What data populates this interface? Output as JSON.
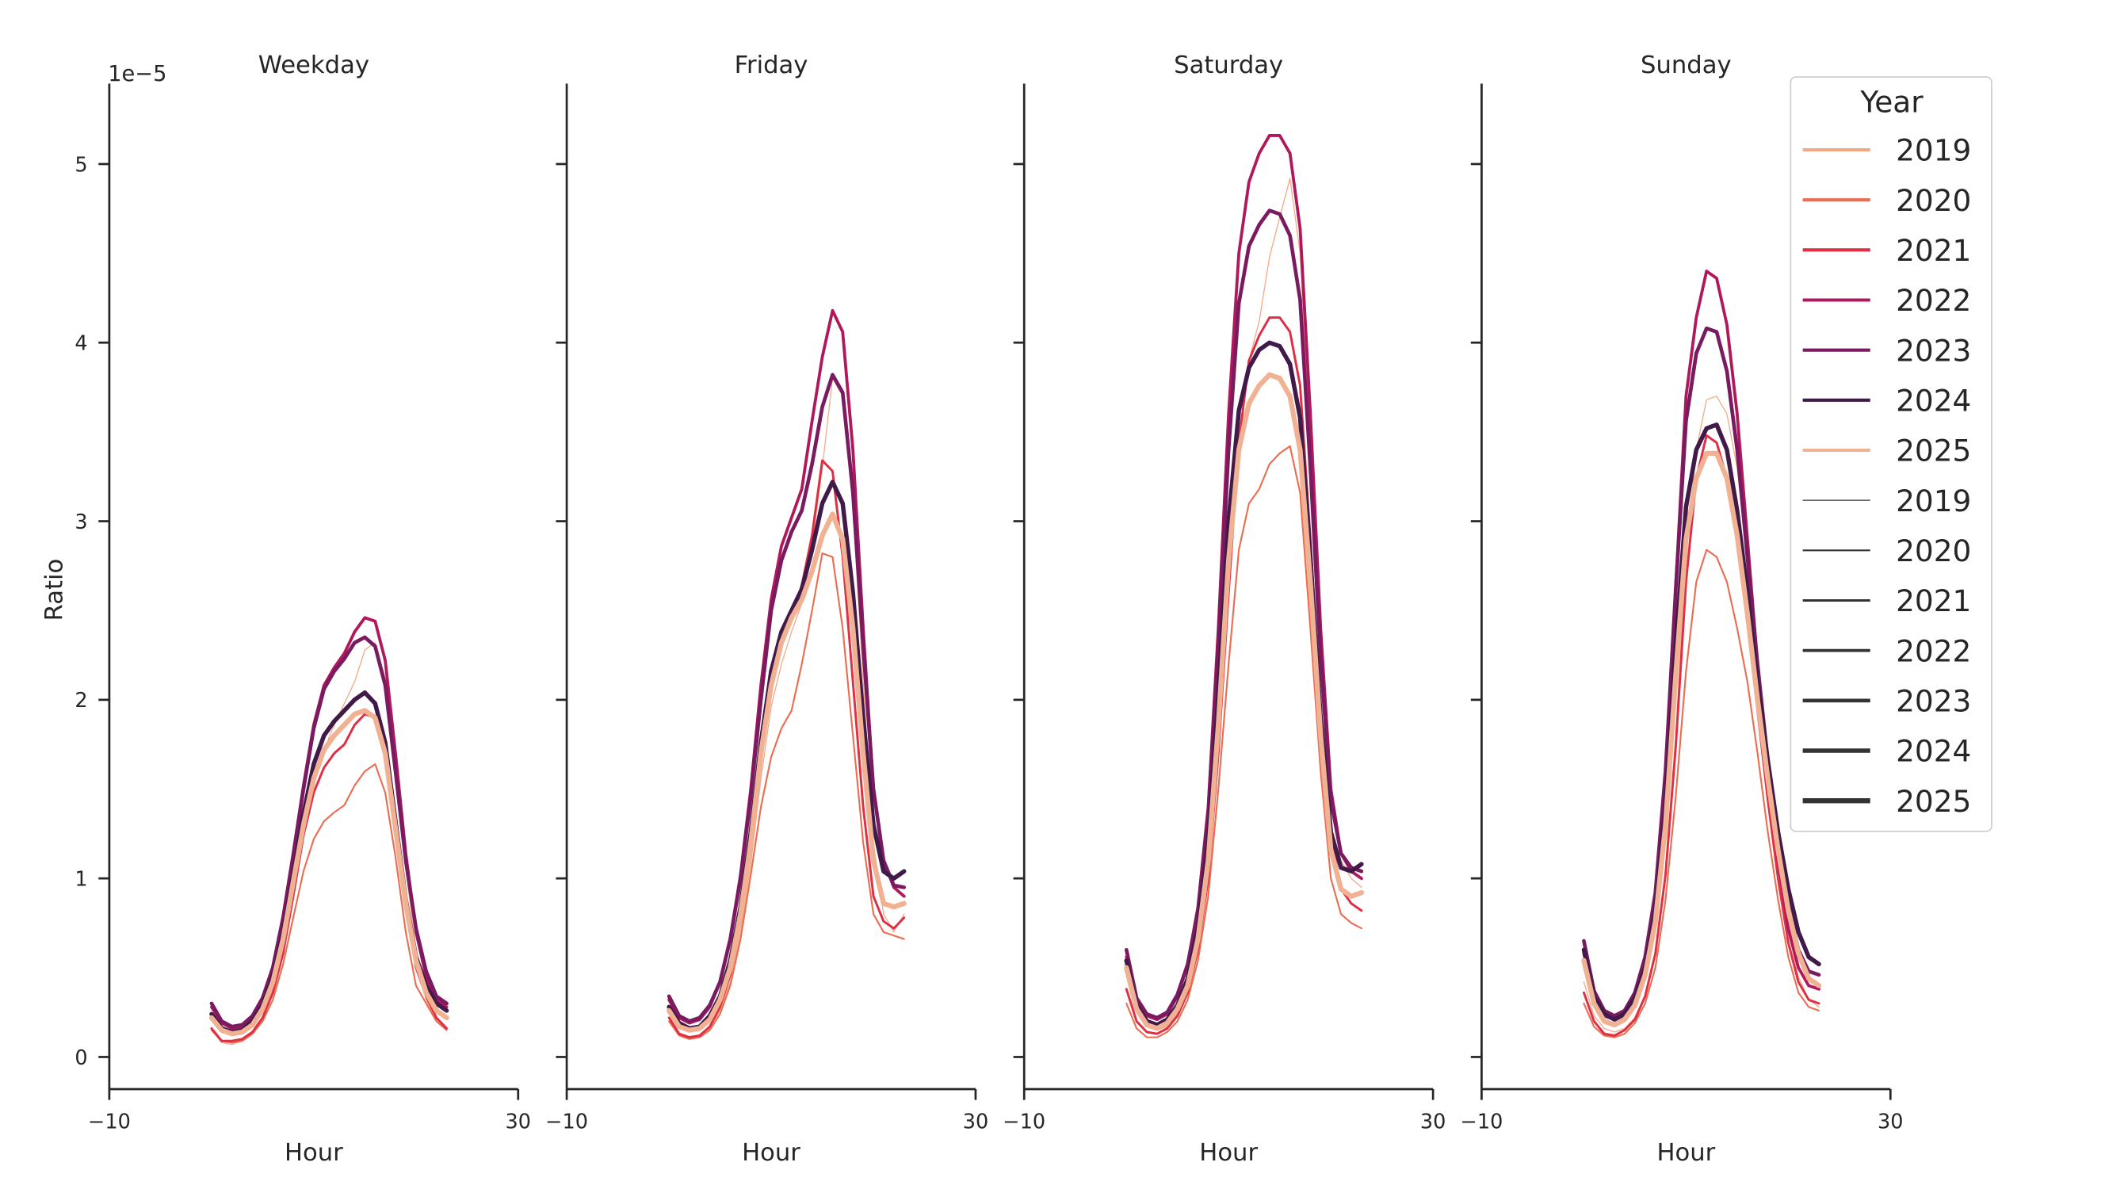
{
  "figure": {
    "ylabel": "Ratio",
    "offset_label": "1e−5",
    "legend": {
      "title": "Year",
      "hue_entries": [
        {
          "label": "2019",
          "color": "#f3a883"
        },
        {
          "label": "2020",
          "color": "#ec6c51"
        },
        {
          "label": "2021",
          "color": "#de2f45"
        },
        {
          "label": "2022",
          "color": "#b0185c"
        },
        {
          "label": "2023",
          "color": "#7a1a60"
        },
        {
          "label": "2024",
          "color": "#401a48"
        },
        {
          "label": "2025",
          "color": "#f1b294"
        }
      ],
      "size_entries": [
        {
          "label": "2019",
          "width": 1.2
        },
        {
          "label": "2020",
          "width": 2.0
        },
        {
          "label": "2021",
          "width": 2.8
        },
        {
          "label": "2022",
          "width": 3.6
        },
        {
          "label": "2023",
          "width": 4.4
        },
        {
          "label": "2024",
          "width": 5.2
        },
        {
          "label": "2025",
          "width": 6.0
        }
      ]
    }
  },
  "chart_data": [
    {
      "type": "line",
      "title": "Weekday",
      "xlabel": "Hour",
      "ylabel": "Ratio",
      "xlim": [
        -10,
        30
      ],
      "ylim": [
        -0.18,
        5.45
      ],
      "xticks": [
        -10,
        30
      ],
      "yticks": [
        0,
        1,
        2,
        3,
        4,
        5
      ],
      "x": [
        0,
        1,
        2,
        3,
        4,
        5,
        6,
        7,
        8,
        9,
        10,
        11,
        12,
        13,
        14,
        15,
        16,
        17,
        18,
        19,
        20,
        21,
        22,
        23
      ],
      "series": [
        {
          "name": "2019",
          "color": "#f3a883",
          "width": 1.2,
          "values": [
            0.15,
            0.08,
            0.07,
            0.09,
            0.14,
            0.22,
            0.36,
            0.58,
            0.88,
            1.22,
            1.52,
            1.72,
            1.86,
            1.98,
            2.1,
            2.28,
            2.32,
            2.12,
            1.6,
            1.05,
            0.6,
            0.32,
            0.2,
            0.15
          ]
        },
        {
          "name": "2020",
          "color": "#ec6c51",
          "width": 2.0,
          "values": [
            0.15,
            0.09,
            0.08,
            0.09,
            0.13,
            0.2,
            0.32,
            0.52,
            0.78,
            1.04,
            1.22,
            1.32,
            1.37,
            1.41,
            1.52,
            1.6,
            1.64,
            1.48,
            1.12,
            0.7,
            0.4,
            0.3,
            0.2,
            0.15
          ]
        },
        {
          "name": "2021",
          "color": "#de2f45",
          "width": 2.8,
          "values": [
            0.16,
            0.09,
            0.09,
            0.1,
            0.14,
            0.22,
            0.36,
            0.58,
            0.9,
            1.24,
            1.48,
            1.62,
            1.7,
            1.75,
            1.86,
            1.92,
            1.9,
            1.72,
            1.3,
            0.85,
            0.5,
            0.34,
            0.22,
            0.16
          ]
        },
        {
          "name": "2022",
          "color": "#b0185c",
          "width": 3.6,
          "values": [
            0.28,
            0.19,
            0.16,
            0.17,
            0.22,
            0.32,
            0.5,
            0.78,
            1.14,
            1.52,
            1.86,
            2.08,
            2.18,
            2.26,
            2.38,
            2.46,
            2.44,
            2.22,
            1.7,
            1.14,
            0.7,
            0.45,
            0.32,
            0.28
          ]
        },
        {
          "name": "2023",
          "color": "#7a1a60",
          "width": 4.4,
          "values": [
            0.3,
            0.2,
            0.17,
            0.18,
            0.23,
            0.33,
            0.5,
            0.78,
            1.13,
            1.5,
            1.84,
            2.06,
            2.16,
            2.23,
            2.32,
            2.35,
            2.3,
            2.08,
            1.6,
            1.1,
            0.72,
            0.48,
            0.34,
            0.3
          ]
        },
        {
          "name": "2024",
          "color": "#401a48",
          "width": 5.2,
          "values": [
            0.24,
            0.16,
            0.14,
            0.15,
            0.2,
            0.29,
            0.45,
            0.7,
            1.02,
            1.36,
            1.64,
            1.8,
            1.88,
            1.94,
            2.0,
            2.04,
            1.98,
            1.76,
            1.32,
            0.88,
            0.56,
            0.4,
            0.3,
            0.26
          ]
        },
        {
          "name": "2025",
          "color": "#f1b294",
          "width": 6.0,
          "values": [
            0.22,
            0.15,
            0.13,
            0.14,
            0.18,
            0.27,
            0.42,
            0.66,
            0.98,
            1.3,
            1.56,
            1.72,
            1.8,
            1.86,
            1.92,
            1.94,
            1.9,
            1.7,
            1.28,
            0.86,
            0.54,
            0.36,
            0.26,
            0.22
          ]
        }
      ]
    },
    {
      "type": "line",
      "title": "Friday",
      "xlabel": "Hour",
      "ylabel": "",
      "xlim": [
        -10,
        30
      ],
      "ylim": [
        -0.18,
        5.45
      ],
      "xticks": [
        -10,
        30
      ],
      "yticks": [
        0,
        1,
        2,
        3,
        4,
        5
      ],
      "x": [
        0,
        1,
        2,
        3,
        4,
        5,
        6,
        7,
        8,
        9,
        10,
        11,
        12,
        13,
        14,
        15,
        16,
        17,
        18,
        19,
        20,
        21,
        22,
        23
      ],
      "series": [
        {
          "name": "2019",
          "color": "#f3a883",
          "width": 1.2,
          "values": [
            0.2,
            0.12,
            0.1,
            0.11,
            0.16,
            0.26,
            0.42,
            0.7,
            1.08,
            1.56,
            1.96,
            2.2,
            2.38,
            2.54,
            2.86,
            3.3,
            3.8,
            3.7,
            3.08,
            2.1,
            1.2,
            0.8,
            0.7,
            0.8
          ]
        },
        {
          "name": "2020",
          "color": "#ec6c51",
          "width": 2.0,
          "values": [
            0.2,
            0.12,
            0.1,
            0.11,
            0.15,
            0.24,
            0.4,
            0.66,
            1.02,
            1.4,
            1.68,
            1.84,
            1.94,
            2.2,
            2.5,
            2.82,
            2.8,
            2.4,
            1.8,
            1.2,
            0.8,
            0.7,
            0.68,
            0.66
          ]
        },
        {
          "name": "2021",
          "color": "#de2f45",
          "width": 2.8,
          "values": [
            0.22,
            0.13,
            0.11,
            0.12,
            0.17,
            0.28,
            0.46,
            0.76,
            1.2,
            1.7,
            2.08,
            2.32,
            2.46,
            2.64,
            2.92,
            3.34,
            3.28,
            2.8,
            2.1,
            1.4,
            0.9,
            0.76,
            0.72,
            0.78
          ]
        },
        {
          "name": "2022",
          "color": "#b0185c",
          "width": 3.6,
          "values": [
            0.32,
            0.22,
            0.19,
            0.21,
            0.28,
            0.42,
            0.66,
            1.02,
            1.5,
            2.08,
            2.56,
            2.86,
            3.02,
            3.18,
            3.56,
            3.92,
            4.18,
            4.06,
            3.4,
            2.4,
            1.5,
            1.1,
            0.95,
            0.9
          ]
        },
        {
          "name": "2023",
          "color": "#7a1a60",
          "width": 4.4,
          "values": [
            0.34,
            0.23,
            0.2,
            0.22,
            0.29,
            0.42,
            0.66,
            1.0,
            1.46,
            2.0,
            2.5,
            2.78,
            2.94,
            3.06,
            3.32,
            3.64,
            3.82,
            3.72,
            3.16,
            2.3,
            1.5,
            1.1,
            0.96,
            0.95
          ]
        },
        {
          "name": "2024",
          "color": "#401a48",
          "width": 5.2,
          "values": [
            0.28,
            0.19,
            0.16,
            0.17,
            0.23,
            0.34,
            0.54,
            0.84,
            1.26,
            1.76,
            2.16,
            2.38,
            2.5,
            2.62,
            2.84,
            3.1,
            3.22,
            3.1,
            2.6,
            1.9,
            1.3,
            1.04,
            1.0,
            1.04
          ]
        },
        {
          "name": "2025",
          "color": "#f1b294",
          "width": 6.0,
          "values": [
            0.26,
            0.17,
            0.15,
            0.16,
            0.21,
            0.32,
            0.5,
            0.8,
            1.2,
            1.7,
            2.08,
            2.32,
            2.46,
            2.56,
            2.72,
            2.92,
            3.04,
            2.9,
            2.4,
            1.7,
            1.1,
            0.86,
            0.84,
            0.86
          ]
        }
      ]
    },
    {
      "type": "line",
      "title": "Saturday",
      "xlabel": "Hour",
      "ylabel": "",
      "xlim": [
        -10,
        30
      ],
      "ylim": [
        -0.18,
        5.45
      ],
      "xticks": [
        -10,
        30
      ],
      "yticks": [
        0,
        1,
        2,
        3,
        4,
        5
      ],
      "x": [
        0,
        1,
        2,
        3,
        4,
        5,
        6,
        7,
        8,
        9,
        10,
        11,
        12,
        13,
        14,
        15,
        16,
        17,
        18,
        19,
        20,
        21,
        22,
        23
      ],
      "series": [
        {
          "name": "2019",
          "color": "#f3a883",
          "width": 1.2,
          "values": [
            0.45,
            0.25,
            0.17,
            0.15,
            0.17,
            0.24,
            0.36,
            0.58,
            0.98,
            1.7,
            2.6,
            3.4,
            3.9,
            4.12,
            4.48,
            4.7,
            4.92,
            4.5,
            3.4,
            2.2,
            1.4,
            1.1,
            1.0,
            0.95
          ]
        },
        {
          "name": "2020",
          "color": "#ec6c51",
          "width": 2.0,
          "values": [
            0.3,
            0.16,
            0.11,
            0.11,
            0.14,
            0.2,
            0.32,
            0.54,
            0.9,
            1.5,
            2.2,
            2.84,
            3.1,
            3.18,
            3.32,
            3.38,
            3.42,
            3.16,
            2.4,
            1.6,
            1.0,
            0.8,
            0.75,
            0.72
          ]
        },
        {
          "name": "2021",
          "color": "#de2f45",
          "width": 2.8,
          "values": [
            0.38,
            0.2,
            0.14,
            0.13,
            0.16,
            0.23,
            0.36,
            0.6,
            1.0,
            1.7,
            2.6,
            3.44,
            3.9,
            4.04,
            4.14,
            4.14,
            4.06,
            3.76,
            2.9,
            1.94,
            1.24,
            0.94,
            0.86,
            0.82
          ]
        },
        {
          "name": "2022",
          "color": "#b0185c",
          "width": 3.6,
          "values": [
            0.56,
            0.32,
            0.23,
            0.21,
            0.24,
            0.34,
            0.52,
            0.84,
            1.4,
            2.4,
            3.6,
            4.5,
            4.9,
            5.06,
            5.16,
            5.16,
            5.06,
            4.64,
            3.6,
            2.4,
            1.5,
            1.14,
            1.04,
            1.0
          ]
        },
        {
          "name": "2023",
          "color": "#7a1a60",
          "width": 4.4,
          "values": [
            0.6,
            0.33,
            0.24,
            0.22,
            0.25,
            0.35,
            0.52,
            0.82,
            1.36,
            2.3,
            3.4,
            4.22,
            4.54,
            4.66,
            4.74,
            4.72,
            4.6,
            4.24,
            3.3,
            2.24,
            1.44,
            1.14,
            1.06,
            1.04
          ]
        },
        {
          "name": "2024",
          "color": "#401a48",
          "width": 5.2,
          "values": [
            0.54,
            0.29,
            0.2,
            0.18,
            0.21,
            0.29,
            0.44,
            0.72,
            1.2,
            2.02,
            3.0,
            3.62,
            3.86,
            3.96,
            4.0,
            3.98,
            3.88,
            3.58,
            2.8,
            1.9,
            1.26,
            1.06,
            1.04,
            1.08
          ]
        },
        {
          "name": "2025",
          "color": "#f1b294",
          "width": 6.0,
          "values": [
            0.5,
            0.27,
            0.18,
            0.16,
            0.19,
            0.27,
            0.4,
            0.66,
            1.1,
            1.86,
            2.78,
            3.4,
            3.66,
            3.76,
            3.82,
            3.8,
            3.7,
            3.4,
            2.66,
            1.8,
            1.16,
            0.94,
            0.9,
            0.92
          ]
        }
      ]
    },
    {
      "type": "line",
      "title": "Sunday",
      "xlabel": "Hour",
      "ylabel": "",
      "xlim": [
        -10,
        30
      ],
      "ylim": [
        -0.18,
        5.45
      ],
      "xticks": [
        -10,
        30
      ],
      "yticks": [
        0,
        1,
        2,
        3,
        4,
        5
      ],
      "x": [
        0,
        1,
        2,
        3,
        4,
        5,
        6,
        7,
        8,
        9,
        10,
        11,
        12,
        13,
        14,
        15,
        16,
        17,
        18,
        19,
        20,
        21,
        22,
        23
      ],
      "series": [
        {
          "name": "2019",
          "color": "#f3a883",
          "width": 1.2,
          "values": [
            0.42,
            0.23,
            0.16,
            0.14,
            0.16,
            0.22,
            0.34,
            0.58,
            1.04,
            1.8,
            2.8,
            3.4,
            3.68,
            3.7,
            3.6,
            3.3,
            2.8,
            2.2,
            1.6,
            1.1,
            0.7,
            0.45,
            0.32,
            0.28
          ]
        },
        {
          "name": "2020",
          "color": "#ec6c51",
          "width": 2.0,
          "values": [
            0.3,
            0.17,
            0.12,
            0.11,
            0.13,
            0.19,
            0.3,
            0.5,
            0.88,
            1.46,
            2.16,
            2.66,
            2.84,
            2.8,
            2.66,
            2.4,
            2.1,
            1.7,
            1.26,
            0.88,
            0.56,
            0.36,
            0.28,
            0.26
          ]
        },
        {
          "name": "2021",
          "color": "#de2f45",
          "width": 2.8,
          "values": [
            0.36,
            0.2,
            0.13,
            0.12,
            0.15,
            0.21,
            0.34,
            0.58,
            1.02,
            1.74,
            2.66,
            3.24,
            3.48,
            3.44,
            3.24,
            2.9,
            2.44,
            1.94,
            1.44,
            1.0,
            0.64,
            0.42,
            0.32,
            0.3
          ]
        },
        {
          "name": "2022",
          "color": "#b0185c",
          "width": 3.6,
          "values": [
            0.58,
            0.33,
            0.23,
            0.21,
            0.24,
            0.33,
            0.52,
            0.88,
            1.56,
            2.64,
            3.7,
            4.14,
            4.4,
            4.36,
            4.1,
            3.6,
            2.9,
            2.2,
            1.6,
            1.1,
            0.72,
            0.5,
            0.4,
            0.38
          ]
        },
        {
          "name": "2023",
          "color": "#7a1a60",
          "width": 4.4,
          "values": [
            0.65,
            0.37,
            0.26,
            0.23,
            0.26,
            0.36,
            0.56,
            0.92,
            1.6,
            2.62,
            3.56,
            3.94,
            4.08,
            4.06,
            3.84,
            3.4,
            2.8,
            2.2,
            1.66,
            1.2,
            0.84,
            0.6,
            0.48,
            0.46
          ]
        },
        {
          "name": "2024",
          "color": "#401a48",
          "width": 5.2,
          "values": [
            0.6,
            0.34,
            0.24,
            0.21,
            0.24,
            0.33,
            0.5,
            0.82,
            1.4,
            2.3,
            3.08,
            3.4,
            3.52,
            3.54,
            3.4,
            3.06,
            2.6,
            2.1,
            1.66,
            1.26,
            0.94,
            0.7,
            0.56,
            0.52
          ]
        },
        {
          "name": "2025",
          "color": "#f1b294",
          "width": 6.0,
          "values": [
            0.54,
            0.3,
            0.2,
            0.18,
            0.21,
            0.29,
            0.46,
            0.76,
            1.3,
            2.14,
            2.9,
            3.24,
            3.38,
            3.38,
            3.24,
            2.92,
            2.48,
            2.0,
            1.56,
            1.16,
            0.82,
            0.58,
            0.44,
            0.4
          ]
        }
      ]
    }
  ]
}
